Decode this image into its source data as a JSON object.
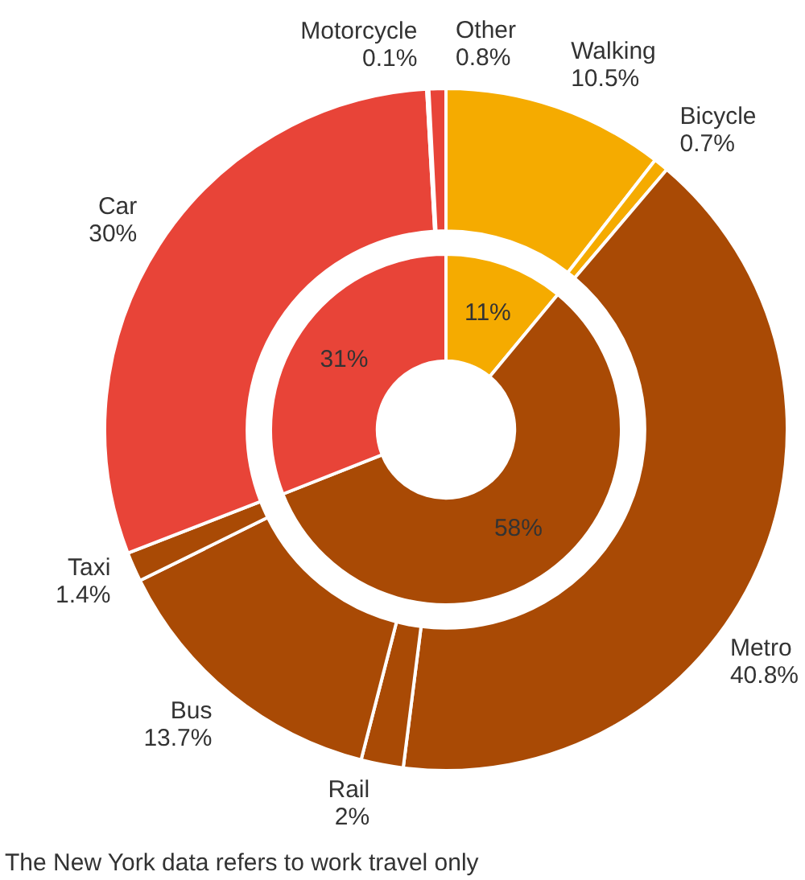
{
  "chart_data": [
    {
      "type": "donut",
      "categories": [
        "Walking",
        "Bicycle",
        "Metro",
        "Rail",
        "Bus",
        "Taxi",
        "Car",
        "Motorcycle",
        "Other"
      ],
      "values": [
        10.5,
        0.7,
        40.8,
        2,
        13.7,
        1.4,
        30,
        0.1,
        0.8
      ],
      "colors": [
        "#f5ab00",
        "#f5ab00",
        "#a94a05",
        "#a94a05",
        "#a94a05",
        "#a94a05",
        "#e84438",
        "#2a7fc0",
        "#e84438"
      ],
      "value_labels": [
        "10.5%",
        "0.7%",
        "40.8%",
        "2%",
        "13.7%",
        "1.4%",
        "30%",
        "0.1%",
        "0.8%"
      ],
      "annotations": [
        "The New York data refers to work travel only"
      ]
    },
    {
      "type": "donut",
      "categories": [
        null,
        null,
        null
      ],
      "values": [
        11,
        58,
        31
      ],
      "colors": [
        "#f5ab00",
        "#a94a05",
        "#e84438"
      ],
      "value_labels": [
        "11%",
        "58%",
        "31%"
      ]
    }
  ]
}
